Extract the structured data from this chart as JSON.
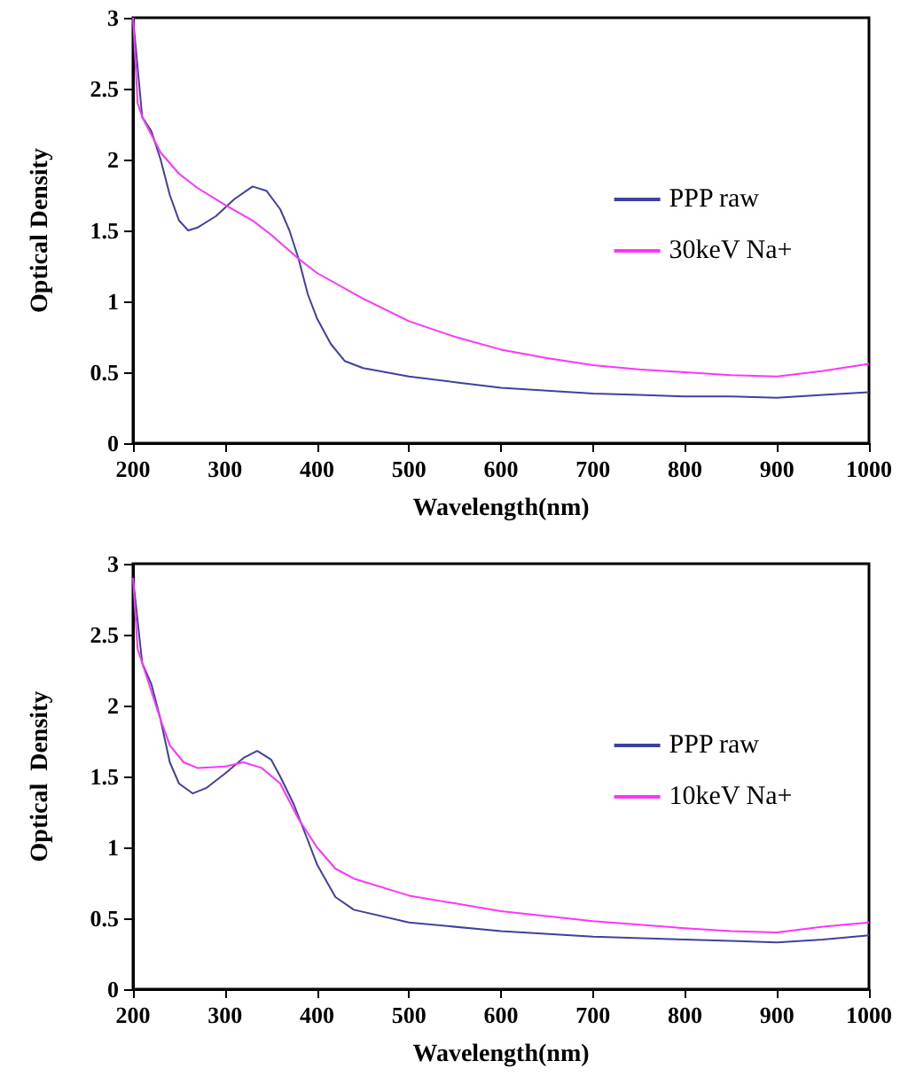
{
  "chart_data": [
    {
      "type": "line",
      "xlabel": "Wavelength(nm)",
      "ylabel": "Optical Density",
      "xlim": [
        200,
        1000
      ],
      "xticks": [
        200,
        300,
        400,
        500,
        600,
        700,
        800,
        900,
        1000
      ],
      "ylim": [
        0,
        3
      ],
      "yticks": [
        0,
        0.5,
        1,
        1.5,
        2,
        2.5,
        3
      ],
      "grid": false,
      "legend": "right",
      "marker": "none",
      "line_style": "solid",
      "series": [
        {
          "name": "PPP raw",
          "color": "#4040a0",
          "x": [
            200,
            210,
            220,
            230,
            240,
            250,
            260,
            270,
            290,
            310,
            330,
            345,
            360,
            370,
            380,
            390,
            400,
            415,
            430,
            450,
            500,
            550,
            600,
            650,
            700,
            750,
            800,
            850,
            900,
            950,
            1000
          ],
          "values": [
            3.0,
            2.3,
            2.2,
            2.0,
            1.75,
            1.57,
            1.5,
            1.52,
            1.6,
            1.72,
            1.81,
            1.78,
            1.65,
            1.5,
            1.3,
            1.05,
            0.88,
            0.7,
            0.58,
            0.53,
            0.47,
            0.43,
            0.39,
            0.37,
            0.35,
            0.34,
            0.33,
            0.33,
            0.32,
            0.34,
            0.36
          ]
        },
        {
          "name": "30keV Na+",
          "color": "#ff33ff",
          "x": [
            200,
            205,
            210,
            230,
            250,
            270,
            300,
            330,
            350,
            380,
            400,
            450,
            500,
            550,
            600,
            650,
            700,
            750,
            800,
            850,
            900,
            950,
            1000
          ],
          "values": [
            3.0,
            2.4,
            2.3,
            2.05,
            1.9,
            1.8,
            1.68,
            1.57,
            1.47,
            1.3,
            1.2,
            1.02,
            0.86,
            0.75,
            0.66,
            0.6,
            0.55,
            0.52,
            0.5,
            0.48,
            0.47,
            0.51,
            0.56
          ]
        }
      ]
    },
    {
      "type": "line",
      "xlabel": "Wavelength(nm)",
      "ylabel": "Optical  Density",
      "xlim": [
        200,
        1000
      ],
      "xticks": [
        200,
        300,
        400,
        500,
        600,
        700,
        800,
        900,
        1000
      ],
      "ylim": [
        0,
        3
      ],
      "yticks": [
        0,
        0.5,
        1,
        1.5,
        2,
        2.5,
        3
      ],
      "grid": false,
      "legend": "right",
      "marker": "none",
      "line_style": "solid",
      "series": [
        {
          "name": "PPP raw",
          "color": "#4040a0",
          "x": [
            200,
            210,
            220,
            230,
            240,
            250,
            265,
            280,
            300,
            320,
            335,
            350,
            360,
            375,
            390,
            400,
            420,
            440,
            500,
            600,
            700,
            800,
            850,
            900,
            950,
            1000
          ],
          "values": [
            2.9,
            2.3,
            2.15,
            1.9,
            1.6,
            1.45,
            1.38,
            1.42,
            1.52,
            1.63,
            1.68,
            1.62,
            1.5,
            1.3,
            1.05,
            0.88,
            0.65,
            0.56,
            0.47,
            0.41,
            0.37,
            0.35,
            0.34,
            0.33,
            0.35,
            0.38
          ]
        },
        {
          "name": "10keV Na+",
          "color": "#ff33ff",
          "x": [
            200,
            205,
            210,
            220,
            230,
            240,
            255,
            270,
            300,
            320,
            340,
            360,
            380,
            400,
            420,
            440,
            500,
            600,
            700,
            800,
            850,
            900,
            950,
            1000
          ],
          "values": [
            2.9,
            2.4,
            2.3,
            2.1,
            1.9,
            1.72,
            1.6,
            1.56,
            1.57,
            1.6,
            1.56,
            1.45,
            1.2,
            1.0,
            0.85,
            0.78,
            0.66,
            0.55,
            0.48,
            0.43,
            0.41,
            0.4,
            0.44,
            0.47
          ]
        }
      ]
    }
  ]
}
